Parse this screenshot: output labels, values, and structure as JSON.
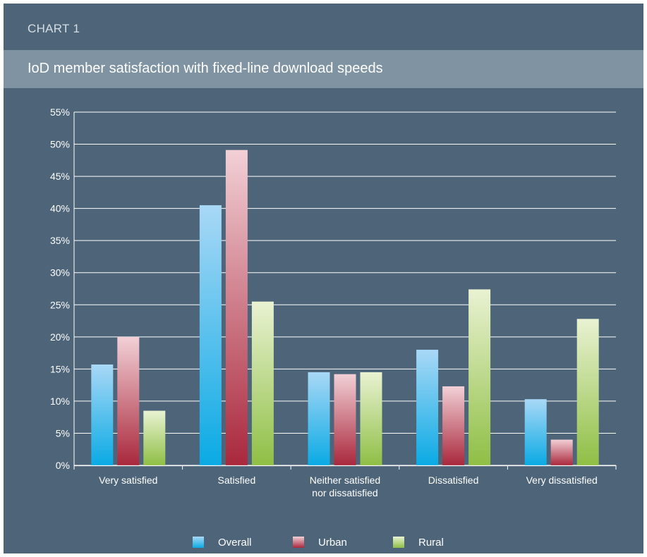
{
  "chart_label": "CHART 1",
  "chart_data": {
    "type": "bar",
    "title": "IoD member satisfaction with fixed-line download speeds",
    "categories": [
      "Very satisfied",
      "Satisfied",
      "Neither satisfied\nnor dissatisfied",
      "Dissatisfied",
      "Very dissatisfied"
    ],
    "series": [
      {
        "name": "Overall",
        "values": [
          15.7,
          40.5,
          14.5,
          18.0,
          10.3
        ]
      },
      {
        "name": "Urban",
        "values": [
          20.0,
          49.1,
          14.2,
          12.3,
          4.0
        ]
      },
      {
        "name": "Rural",
        "values": [
          8.5,
          25.5,
          14.5,
          27.4,
          22.8
        ]
      }
    ],
    "ylim": [
      0,
      55
    ],
    "yticks": [
      "0%",
      "5%",
      "10%",
      "15%",
      "20%",
      "25%",
      "30%",
      "35%",
      "40%",
      "45%",
      "50%",
      "55%"
    ],
    "grid": true,
    "legend_position": "bottom",
    "colors": {
      "Overall": [
        "#a9d8f6",
        "#0aaae4"
      ],
      "Urban": [
        "#f2d0d6",
        "#a9283c"
      ],
      "Rural": [
        "#e9f2d2",
        "#8fbf45"
      ]
    }
  }
}
